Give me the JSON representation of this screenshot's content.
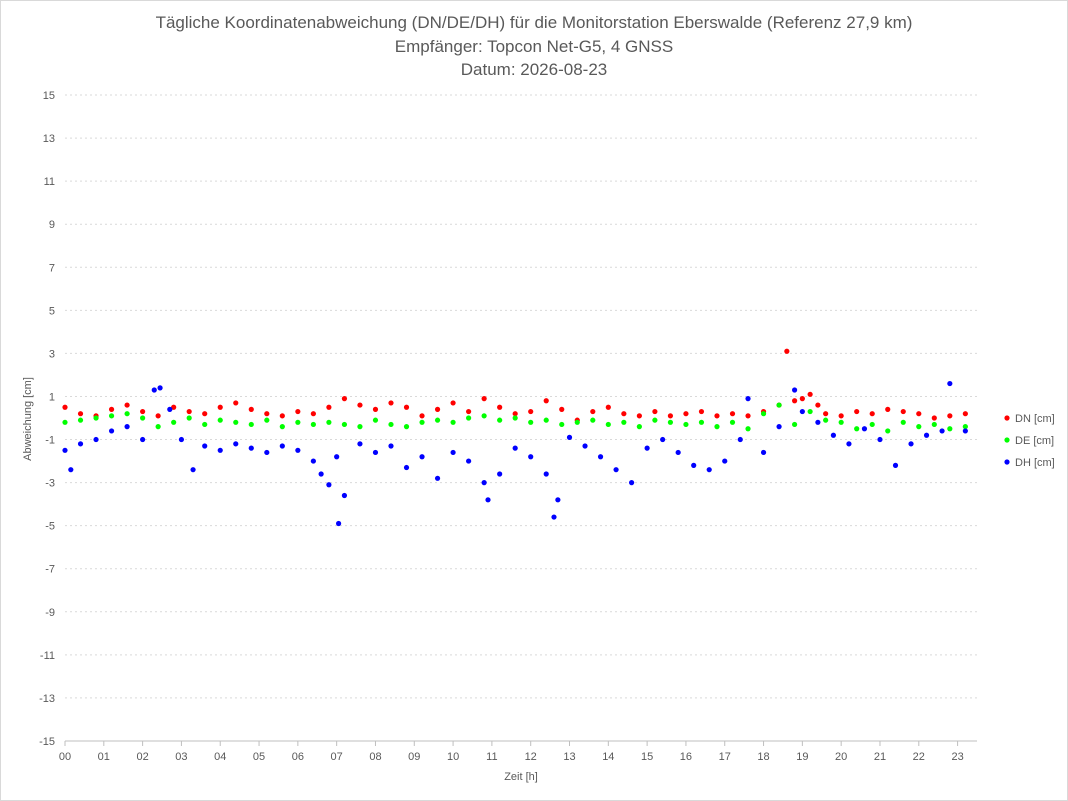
{
  "chart_data": {
    "type": "scatter",
    "title_lines": [
      "Tägliche Koordinatenabweichung (DN/DE/DH) für die Monitorstation Eberswalde (Referenz 27,9 km)",
      "Empfänger: Topcon Net-G5, 4 GNSS",
      "Datum: 2026-08-23"
    ],
    "xlabel": "Zeit [h]",
    "ylabel": "Abweichung [cm]",
    "xlim": [
      0,
      23.5
    ],
    "ylim": [
      -15,
      15
    ],
    "x_ticks": [
      0,
      1,
      2,
      3,
      4,
      5,
      6,
      7,
      8,
      9,
      10,
      11,
      12,
      13,
      14,
      15,
      16,
      17,
      18,
      19,
      20,
      21,
      22,
      23
    ],
    "x_tick_labels": [
      "00",
      "01",
      "02",
      "03",
      "04",
      "05",
      "06",
      "07",
      "08",
      "09",
      "10",
      "11",
      "12",
      "13",
      "14",
      "15",
      "16",
      "17",
      "18",
      "19",
      "20",
      "21",
      "22",
      "23"
    ],
    "y_ticks": [
      15,
      13,
      11,
      9,
      7,
      5,
      3,
      1,
      -1,
      -3,
      -5,
      -7,
      -9,
      -11,
      -13,
      -15
    ],
    "y_tick_labels": [
      "15",
      "13",
      "11",
      "9",
      "7",
      "5",
      "3",
      "1",
      "-1",
      "-3",
      "-5",
      "-7",
      "-9",
      "-11",
      "-13",
      "-15"
    ],
    "grid": "horizontal dotted",
    "legend_position": "right",
    "series": [
      {
        "name": "DN [cm]",
        "color": "#ff0000",
        "x": [
          0.0,
          0.4,
          0.8,
          1.2,
          1.6,
          2.0,
          2.4,
          2.8,
          3.2,
          3.6,
          4.0,
          4.4,
          4.8,
          5.2,
          5.6,
          6.0,
          6.4,
          6.8,
          7.2,
          7.6,
          8.0,
          8.4,
          8.8,
          9.2,
          9.6,
          10.0,
          10.4,
          10.8,
          11.2,
          11.6,
          12.0,
          12.4,
          12.8,
          13.2,
          13.6,
          14.0,
          14.4,
          14.8,
          15.2,
          15.6,
          16.0,
          16.4,
          16.8,
          17.2,
          17.6,
          18.0,
          18.4,
          18.6,
          18.8,
          19.0,
          19.2,
          19.4,
          19.6,
          20.0,
          20.4,
          20.8,
          21.2,
          21.6,
          22.0,
          22.4,
          22.8,
          23.2
        ],
        "y": [
          0.5,
          0.2,
          0.1,
          0.4,
          0.6,
          0.3,
          0.1,
          0.5,
          0.3,
          0.2,
          0.5,
          0.7,
          0.4,
          0.2,
          0.1,
          0.3,
          0.2,
          0.5,
          0.9,
          0.6,
          0.4,
          0.7,
          0.5,
          0.1,
          0.4,
          0.7,
          0.3,
          0.9,
          0.5,
          0.2,
          0.3,
          0.8,
          0.4,
          -0.1,
          0.3,
          0.5,
          0.2,
          0.1,
          0.3,
          0.1,
          0.2,
          0.3,
          0.1,
          0.2,
          0.1,
          0.3,
          0.6,
          3.1,
          0.8,
          0.9,
          1.1,
          0.6,
          0.2,
          0.1,
          0.3,
          0.2,
          0.4,
          0.3,
          0.2,
          0.0,
          0.1,
          0.2
        ]
      },
      {
        "name": "DE [cm]",
        "color": "#00ff00",
        "x": [
          0.0,
          0.4,
          0.8,
          1.2,
          1.6,
          2.0,
          2.4,
          2.8,
          3.2,
          3.6,
          4.0,
          4.4,
          4.8,
          5.2,
          5.6,
          6.0,
          6.4,
          6.8,
          7.2,
          7.6,
          8.0,
          8.4,
          8.8,
          9.2,
          9.6,
          10.0,
          10.4,
          10.8,
          11.2,
          11.6,
          12.0,
          12.4,
          12.8,
          13.2,
          13.6,
          14.0,
          14.4,
          14.8,
          15.2,
          15.6,
          16.0,
          16.4,
          16.8,
          17.2,
          17.6,
          18.0,
          18.4,
          18.8,
          19.2,
          19.6,
          20.0,
          20.4,
          20.8,
          21.2,
          21.6,
          22.0,
          22.4,
          22.8,
          23.2
        ],
        "y": [
          -0.2,
          -0.1,
          0.0,
          0.1,
          0.2,
          0.0,
          -0.4,
          -0.2,
          0.0,
          -0.3,
          -0.1,
          -0.2,
          -0.3,
          -0.1,
          -0.4,
          -0.2,
          -0.3,
          -0.2,
          -0.3,
          -0.4,
          -0.1,
          -0.3,
          -0.4,
          -0.2,
          -0.1,
          -0.2,
          0.0,
          0.1,
          -0.1,
          0.0,
          -0.2,
          -0.1,
          -0.3,
          -0.2,
          -0.1,
          -0.3,
          -0.2,
          -0.4,
          -0.1,
          -0.2,
          -0.3,
          -0.2,
          -0.4,
          -0.2,
          -0.5,
          0.2,
          0.6,
          -0.3,
          0.3,
          -0.1,
          -0.2,
          -0.5,
          -0.3,
          -0.6,
          -0.2,
          -0.4,
          -0.3,
          -0.5,
          -0.4
        ]
      },
      {
        "name": "DH [cm]",
        "color": "#0000ff",
        "x": [
          0.0,
          0.15,
          0.4,
          0.8,
          1.2,
          1.6,
          2.0,
          2.3,
          2.45,
          2.7,
          3.0,
          3.3,
          3.6,
          4.0,
          4.4,
          4.8,
          5.2,
          5.6,
          6.0,
          6.4,
          6.6,
          6.8,
          7.0,
          7.05,
          7.2,
          7.6,
          8.0,
          8.4,
          8.8,
          9.2,
          9.6,
          10.0,
          10.4,
          10.8,
          10.9,
          11.2,
          11.6,
          12.0,
          12.4,
          12.6,
          12.7,
          13.0,
          13.4,
          13.8,
          14.2,
          14.6,
          15.0,
          15.4,
          15.8,
          16.2,
          16.6,
          17.0,
          17.4,
          17.6,
          18.0,
          18.4,
          18.8,
          19.0,
          19.4,
          19.8,
          20.2,
          20.6,
          21.0,
          21.4,
          21.8,
          22.2,
          22.6,
          22.8,
          23.2
        ],
        "y": [
          -1.5,
          -2.4,
          -1.2,
          -1.0,
          -0.6,
          -0.4,
          -1.0,
          1.3,
          1.4,
          0.4,
          -1.0,
          -2.4,
          -1.3,
          -1.5,
          -1.2,
          -1.4,
          -1.6,
          -1.3,
          -1.5,
          -2.0,
          -2.6,
          -3.1,
          -1.8,
          -4.9,
          -3.6,
          -1.2,
          -1.6,
          -1.3,
          -2.3,
          -1.8,
          -2.8,
          -1.6,
          -2.0,
          -3.0,
          -3.8,
          -2.6,
          -1.4,
          -1.8,
          -2.6,
          -4.6,
          -3.8,
          -0.9,
          -1.3,
          -1.8,
          -2.4,
          -3.0,
          -1.4,
          -1.0,
          -1.6,
          -2.2,
          -2.4,
          -2.0,
          -1.0,
          0.9,
          -1.6,
          -0.4,
          1.3,
          0.3,
          -0.2,
          -0.8,
          -1.2,
          -0.5,
          -1.0,
          -2.2,
          -1.2,
          -0.8,
          -0.6,
          1.6,
          -0.6
        ]
      }
    ]
  }
}
